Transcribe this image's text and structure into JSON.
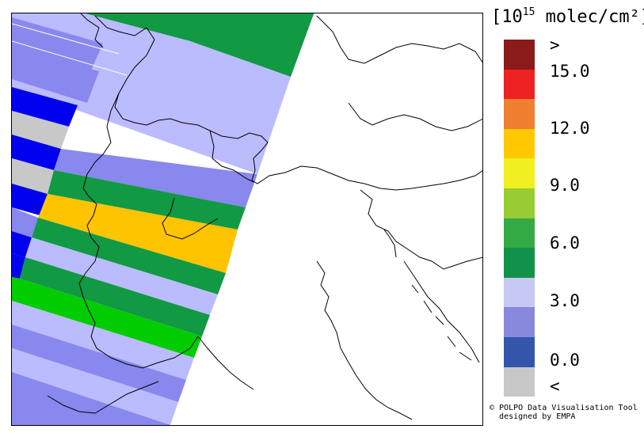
{
  "legend": {
    "title_main": "10",
    "title_sup": "15",
    "title_rest": " molec/cm²",
    "bracket_open": "[",
    "bracket_close": "]",
    "labels": [
      ">",
      "15.0",
      "12.0",
      "9.0",
      "6.0",
      "3.0",
      "0.0",
      "<"
    ],
    "colors": [
      "#8B1A1A",
      "#EE2222",
      "#F08030",
      "#FFC800",
      "#F0F020",
      "#99CC33",
      "#33AA44",
      "#11914A",
      "#C8C8F5",
      "#8888DD",
      "#3355AA",
      "#C8C8C8"
    ]
  },
  "credit": {
    "line1": "© POLPO Data Visualisation Tool",
    "line2": "designed by EMPA"
  },
  "map": {
    "swath_colors": {
      "blue": "#0000EE",
      "lavender": "#BBBBFF",
      "periwinkle": "#8888EE",
      "gray": "#C8C8C8",
      "green": "#119944",
      "gold": "#FFC400",
      "bright_green": "#00CC00"
    }
  }
}
